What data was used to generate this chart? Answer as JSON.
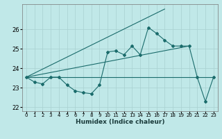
{
  "title": "",
  "xlabel": "Humidex (Indice chaleur)",
  "bg_color": "#c0e8e8",
  "grid_color": "#a8d0d0",
  "line_color": "#1a6b6b",
  "xlim": [
    -0.5,
    23.5
  ],
  "ylim": [
    21.8,
    27.3
  ],
  "yticks": [
    22,
    23,
    24,
    25,
    26
  ],
  "xticks": [
    0,
    1,
    2,
    3,
    4,
    5,
    6,
    7,
    8,
    9,
    10,
    11,
    12,
    13,
    14,
    15,
    16,
    17,
    18,
    19,
    20,
    21,
    22,
    23
  ],
  "series1_x": [
    0,
    1,
    2,
    3,
    4,
    5,
    6,
    7,
    8,
    9,
    10,
    11,
    12,
    13,
    14,
    15,
    16,
    17,
    18,
    19,
    20,
    21,
    22,
    23
  ],
  "series1_y": [
    23.55,
    23.3,
    23.2,
    23.55,
    23.55,
    23.15,
    22.85,
    22.75,
    22.7,
    23.15,
    24.85,
    24.9,
    24.7,
    25.15,
    24.7,
    26.1,
    25.8,
    25.45,
    25.15,
    25.15,
    25.15,
    23.55,
    22.3,
    23.55
  ],
  "series2_x": [
    0,
    23
  ],
  "series2_y": [
    23.55,
    23.55
  ],
  "series3_x": [
    0,
    17
  ],
  "series3_y": [
    23.55,
    27.05
  ],
  "series4_x": [
    0,
    20
  ],
  "series4_y": [
    23.55,
    25.15
  ]
}
